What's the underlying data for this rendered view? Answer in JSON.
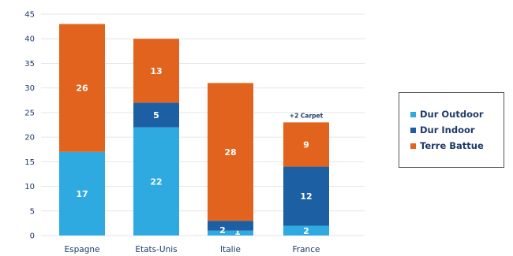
{
  "chart_data": {
    "type": "bar",
    "stacked": true,
    "categories": [
      "Espagne",
      "Etats-Unis",
      "Italie",
      "France"
    ],
    "series": [
      {
        "name": "Dur Outdoor",
        "color": "#2eaae1",
        "values": [
          17,
          22,
          1,
          2
        ]
      },
      {
        "name": "Dur Indoor",
        "color": "#1c5fa3",
        "values": [
          0,
          5,
          2,
          12
        ]
      },
      {
        "name": "Terre Battue",
        "color": "#e2631d",
        "values": [
          26,
          13,
          28,
          9
        ]
      }
    ],
    "segment_labels": [
      [
        "17",
        "",
        "26"
      ],
      [
        "22",
        "5",
        "13"
      ],
      [
        "1",
        "2",
        "28"
      ],
      [
        "2",
        "12",
        "9"
      ]
    ],
    "annotations": [
      {
        "category": "France",
        "text": "+2 Carpet"
      }
    ],
    "yticks": [
      "0",
      "5",
      "10",
      "15",
      "20",
      "25",
      "30",
      "35",
      "40",
      "45"
    ],
    "ylim": [
      0,
      45
    ],
    "grid": true,
    "legend_position": "right"
  },
  "legend": {
    "items": [
      {
        "label": "Dur Outdoor",
        "color": "#2eaae1"
      },
      {
        "label": "Dur Indoor",
        "color": "#1c5fa3"
      },
      {
        "label": "Terre Battue",
        "color": "#e2631d"
      }
    ]
  }
}
